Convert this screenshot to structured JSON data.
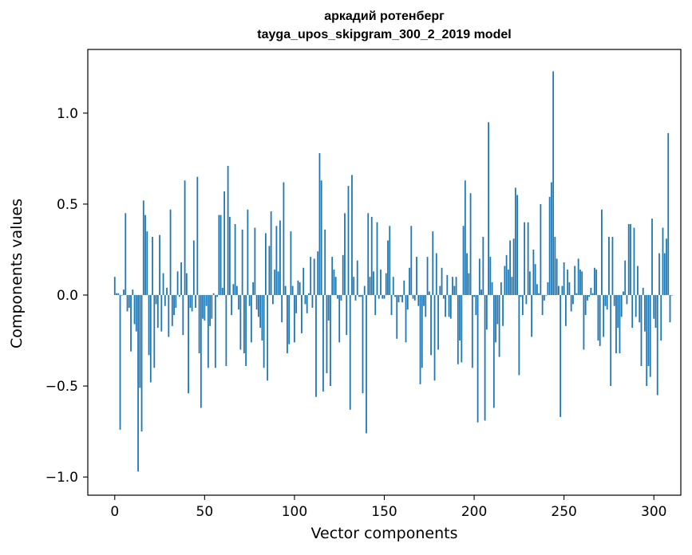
{
  "chart_data": {
    "type": "bar",
    "title": "аркадий ротенберг",
    "subtitle": "tayga_upos_skipgram_300_2_2019 model",
    "xlabel": "Vector components",
    "ylabel": "Components values",
    "xlim": [
      -15,
      315
    ],
    "ylim": [
      -1.1,
      1.35
    ],
    "xticks": [
      0,
      50,
      100,
      150,
      200,
      250,
      300
    ],
    "yticks": [
      -1.0,
      -0.5,
      0.0,
      0.5,
      1.0
    ],
    "ytick_labels": [
      "−1.0",
      "−0.5",
      "0.0",
      "0.5",
      "1.0"
    ],
    "grid": false,
    "bar_color": "#1f77b4",
    "values": [
      0.1,
      0.01,
      0.01,
      -0.74,
      0.0,
      0.03,
      0.45,
      -0.09,
      -0.07,
      -0.31,
      0.03,
      -0.16,
      -0.2,
      -0.97,
      -0.51,
      -0.75,
      0.52,
      0.44,
      0.35,
      -0.33,
      -0.48,
      0.32,
      -0.4,
      -0.05,
      -0.18,
      0.33,
      -0.2,
      0.12,
      -0.06,
      0.04,
      -0.23,
      0.47,
      -0.17,
      -0.11,
      -0.07,
      0.13,
      -0.01,
      0.18,
      -0.22,
      0.63,
      0.12,
      -0.54,
      -0.07,
      -0.09,
      0.3,
      -0.07,
      0.65,
      -0.32,
      -0.62,
      -0.13,
      -0.14,
      -0.06,
      -0.4,
      -0.17,
      -0.13,
      0.01,
      -0.4,
      -0.01,
      0.44,
      0.44,
      0.04,
      0.57,
      -0.39,
      0.71,
      0.43,
      -0.11,
      0.06,
      0.39,
      0.05,
      -0.08,
      -0.3,
      0.36,
      -0.32,
      -0.39,
      0.47,
      -0.06,
      -0.26,
      0.07,
      0.37,
      -0.08,
      -0.12,
      -0.18,
      -0.25,
      -0.4,
      0.34,
      -0.47,
      0.27,
      0.46,
      -0.05,
      0.14,
      0.38,
      0.13,
      0.41,
      -0.15,
      0.62,
      0.05,
      -0.32,
      -0.27,
      0.35,
      0.05,
      -0.26,
      -0.1,
      0.08,
      0.07,
      -0.21,
      0.15,
      -0.05,
      -0.1,
      0.01,
      0.21,
      -0.07,
      0.2,
      -0.56,
      0.24,
      0.78,
      0.63,
      -0.53,
      0.36,
      -0.43,
      -0.14,
      -0.5,
      0.21,
      0.14,
      0.1,
      -0.02,
      -0.26,
      -0.03,
      0.22,
      0.45,
      -0.22,
      0.6,
      -0.63,
      0.66,
      0.1,
      -0.03,
      0.19,
      -0.01,
      -0.01,
      -0.54,
      0.05,
      -0.76,
      0.45,
      0.1,
      0.43,
      0.13,
      -0.11,
      0.4,
      -0.02,
      0.14,
      -0.02,
      -0.02,
      0.12,
      0.3,
      0.38,
      -0.11,
      0.1,
      -0.01,
      -0.24,
      -0.04,
      -0.01,
      -0.04,
      0.08,
      -0.26,
      -0.08,
      0.15,
      0.38,
      -0.02,
      -0.03,
      0.21,
      -0.06,
      -0.49,
      -0.4,
      -0.06,
      -0.12,
      0.21,
      0.02,
      -0.33,
      0.35,
      -0.47,
      0.23,
      -0.3,
      0.05,
      0.15,
      -0.02,
      -0.12,
      0.11,
      -0.12,
      -0.13,
      0.1,
      0.05,
      0.1,
      -0.38,
      -0.25,
      -0.37,
      0.38,
      0.63,
      0.23,
      0.12,
      0.56,
      -0.4,
      -0.01,
      -0.11,
      -0.7,
      0.2,
      0.03,
      0.32,
      -0.69,
      -0.19,
      0.95,
      0.21,
      0.07,
      -0.62,
      -0.26,
      -0.16,
      -0.34,
      0.07,
      -0.17,
      0.16,
      0.22,
      0.14,
      0.3,
      0.1,
      0.31,
      0.59,
      0.55,
      -0.44,
      -0.01,
      -0.11,
      0.4,
      -0.05,
      0.4,
      0.13,
      -0.23,
      0.25,
      0.17,
      0.06,
      0.01,
      0.5,
      -0.11,
      -0.03,
      0.0,
      0.07,
      0.54,
      0.62,
      1.23,
      0.32,
      0.2,
      0.05,
      -0.67,
      0.05,
      0.18,
      -0.17,
      0.14,
      0.07,
      -0.09,
      -0.05,
      0.16,
      0.01,
      0.2,
      0.14,
      0.13,
      -0.3,
      -0.11,
      -0.03,
      -0.01,
      0.04,
      0.01,
      0.15,
      0.14,
      -0.25,
      -0.28,
      0.47,
      -0.23,
      -0.06,
      -0.08,
      0.32,
      -0.5,
      0.32,
      -0.06,
      -0.32,
      -0.18,
      -0.32,
      -0.12,
      0.02,
      0.19,
      -0.05,
      0.39,
      0.39,
      -0.18,
      0.37,
      -0.12,
      0.16,
      -0.15,
      -0.39,
      0.04,
      -0.2,
      -0.5,
      -0.39,
      -0.45,
      0.42,
      -0.13,
      -0.18,
      -0.55,
      0.23,
      -0.25,
      0.37,
      0.23,
      0.31,
      0.89,
      -0.15,
      0.0
    ]
  }
}
